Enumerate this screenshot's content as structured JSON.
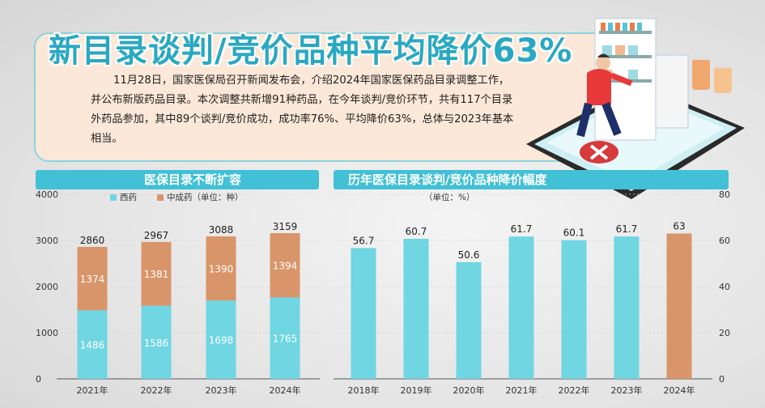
{
  "headline": "新目录谈判/竞价品种平均降价63%",
  "intro": "11月28日，国家医保局召开新闻发布会，介绍2024年国家医保药品目录调整工作，并公布新版药品目录。本次调整共新增91种药品，在今年谈判/竞价环节，共有117个目录外药品参加，其中89个谈判/竞价成功，成功率76%、平均降价63%，总体与2023年基本相当。",
  "colors": {
    "western": "#6fd6e2",
    "tcm": "#d9956a",
    "accent": "#41c0d6",
    "bar_2024": "#d9956a"
  },
  "chart_data": [
    {
      "type": "bar",
      "stacked": true,
      "title": "医保目录不断扩容",
      "categories": [
        "2021年",
        "2022年",
        "2023年",
        "2024年"
      ],
      "series": [
        {
          "name": "西药",
          "values": [
            1486,
            1586,
            1698,
            1765
          ]
        },
        {
          "name": "中成药（单位：种）",
          "values": [
            1374,
            1381,
            1390,
            1394
          ]
        }
      ],
      "totals": [
        2860,
        2967,
        3088,
        3159
      ],
      "ylim": [
        0,
        4000
      ],
      "yticks": [
        "0",
        "1000",
        "2000",
        "3000",
        "4000"
      ],
      "legend": "top-left"
    },
    {
      "type": "bar",
      "title": "历年医保目录谈判/竞价品种降价幅度",
      "unit": "（单位：%）",
      "categories": [
        "2018年",
        "2019年",
        "2020年",
        "2021年",
        "2022年",
        "2023年",
        "2024年"
      ],
      "values": [
        56.7,
        60.7,
        50.6,
        61.7,
        60.1,
        61.7,
        63
      ],
      "ylim": [
        0,
        80
      ],
      "yticks": [
        "0",
        "20",
        "40",
        "60",
        "80"
      ]
    }
  ]
}
